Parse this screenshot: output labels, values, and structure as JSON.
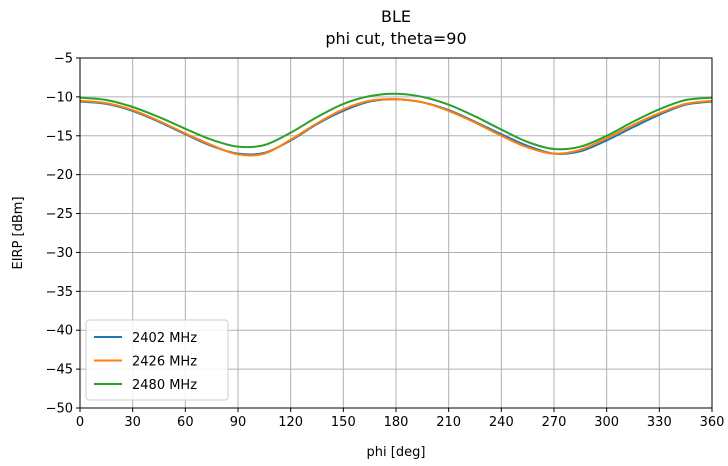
{
  "chart_data": {
    "type": "line",
    "title": "BLE",
    "subtitle": "phi cut, theta=90",
    "xlabel": "phi [deg]",
    "ylabel": "EIRP [dBm]",
    "xlim": [
      0,
      360
    ],
    "ylim": [
      -50,
      -5
    ],
    "xticks": [
      0,
      30,
      60,
      90,
      120,
      150,
      180,
      210,
      240,
      270,
      300,
      330,
      360
    ],
    "yticks": [
      -50,
      -45,
      -40,
      -35,
      -30,
      -25,
      -20,
      -15,
      -10,
      -5
    ],
    "grid": true,
    "legend_position": "lower-left",
    "x": [
      0,
      15,
      30,
      45,
      60,
      75,
      90,
      105,
      120,
      135,
      150,
      165,
      180,
      195,
      210,
      225,
      240,
      255,
      270,
      285,
      300,
      315,
      330,
      345,
      360
    ],
    "series": [
      {
        "name": "2402 MHz",
        "color": "#1f77b4",
        "values": [
          -10.6,
          -10.9,
          -11.8,
          -13.2,
          -14.8,
          -16.3,
          -17.3,
          -17.2,
          -15.6,
          -13.5,
          -11.8,
          -10.6,
          -10.3,
          -10.7,
          -11.7,
          -13.2,
          -14.8,
          -16.3,
          -17.3,
          -17.0,
          -15.6,
          -13.9,
          -12.3,
          -11.0,
          -10.6
        ]
      },
      {
        "name": "2426 MHz",
        "color": "#ff7f0e",
        "values": [
          -10.5,
          -10.8,
          -11.7,
          -13.1,
          -14.7,
          -16.2,
          -17.4,
          -17.3,
          -15.5,
          -13.4,
          -11.6,
          -10.5,
          -10.3,
          -10.7,
          -11.8,
          -13.3,
          -15.0,
          -16.5,
          -17.3,
          -16.8,
          -15.3,
          -13.6,
          -12.1,
          -10.9,
          -10.5
        ]
      },
      {
        "name": "2480 MHz",
        "color": "#2ca02c",
        "values": [
          -10.1,
          -10.4,
          -11.3,
          -12.6,
          -14.1,
          -15.5,
          -16.4,
          -16.2,
          -14.6,
          -12.6,
          -10.9,
          -9.9,
          -9.6,
          -10.0,
          -11.0,
          -12.5,
          -14.2,
          -15.8,
          -16.7,
          -16.4,
          -15.0,
          -13.2,
          -11.6,
          -10.4,
          -10.1
        ]
      }
    ]
  }
}
